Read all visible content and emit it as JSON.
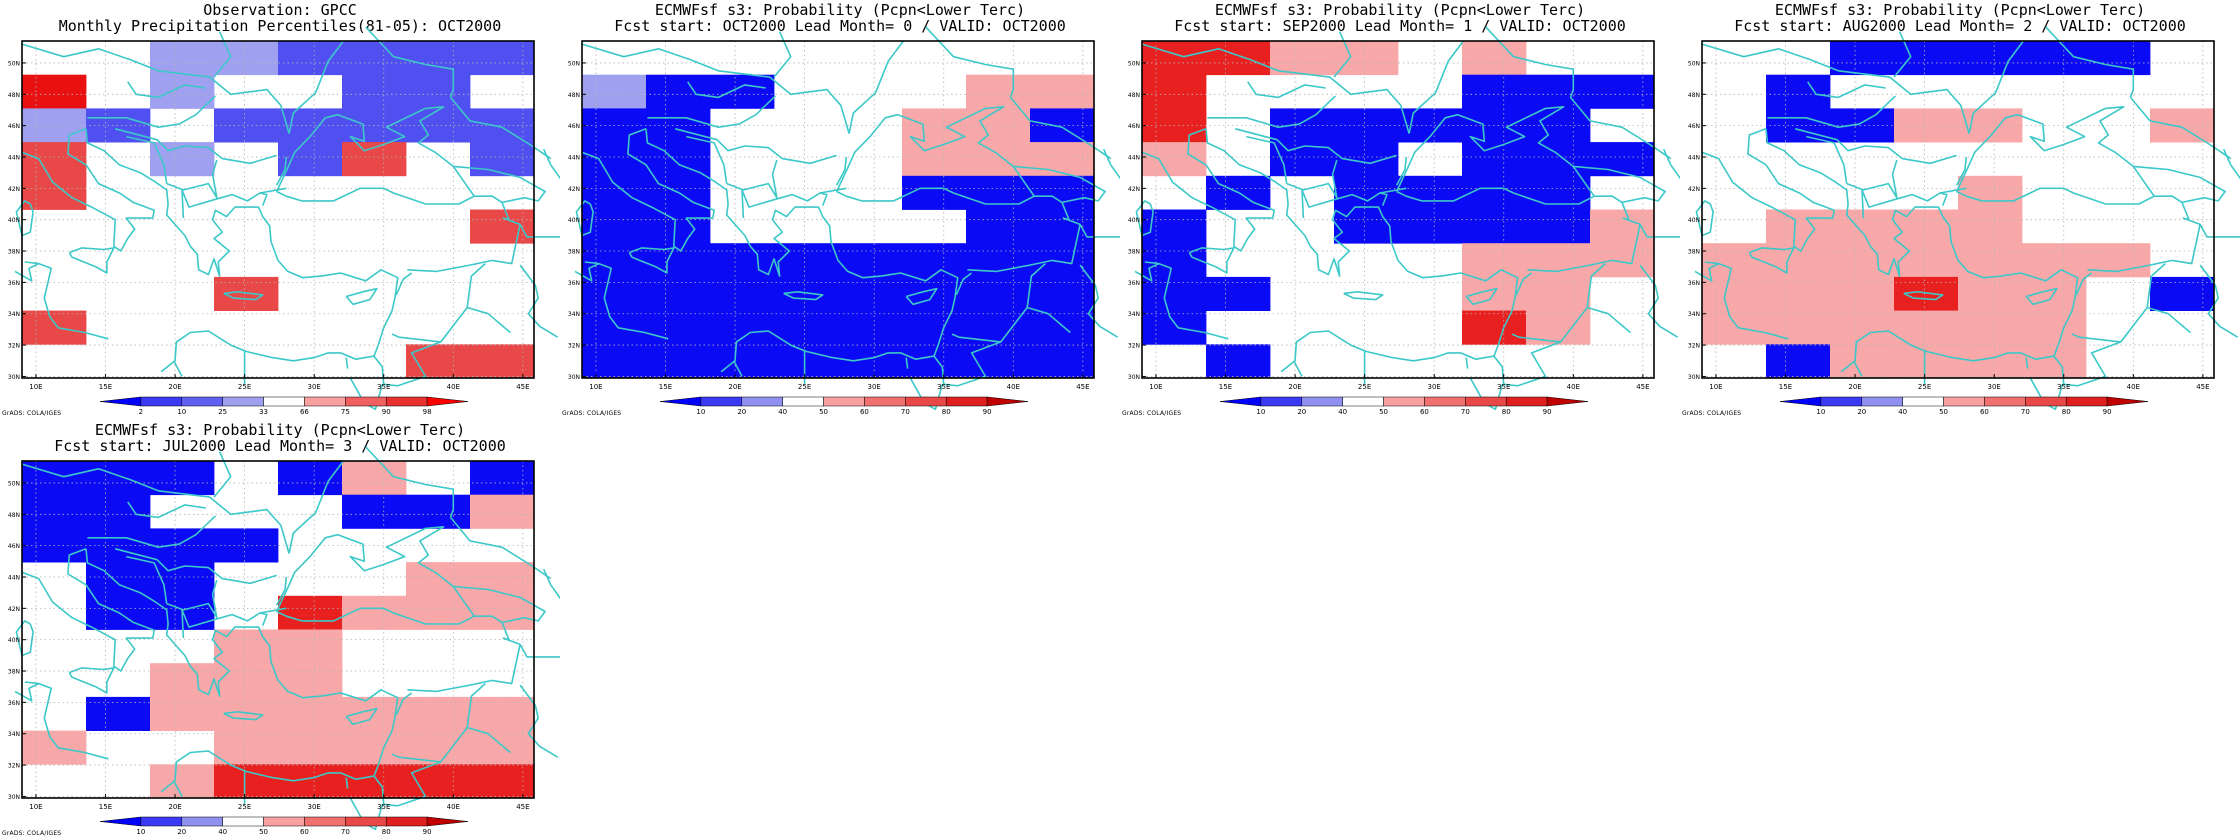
{
  "credit": "GrADS: COLA/IGES",
  "x_ticks": [
    "10E",
    "15E",
    "20E",
    "25E",
    "30E",
    "35E",
    "40E",
    "45E"
  ],
  "y_ticks": [
    "50N",
    "48N",
    "46N",
    "44N",
    "42N",
    "40N",
    "38N",
    "36N",
    "34N",
    "32N",
    "30N"
  ],
  "colors": {
    "coast": "#3cc8c8",
    "grid": "#b4b4b4"
  },
  "panels": [
    {
      "id": "obs",
      "title1": "Observation: GPCC",
      "title2": "Monthly Precipitation Percentiles(81-05): OCT2000",
      "colorbar": {
        "labels": [
          "2",
          "10",
          "25",
          "33",
          "66",
          "75",
          "90",
          "98"
        ],
        "colors": [
          "#0000ff",
          "#3a3af5",
          "#6060f0",
          "#a0a0f0",
          "#ffffff",
          "#f8a0a0",
          "#f06060",
          "#e83030",
          "#ff0000"
        ]
      },
      "grid": [
        "00UUPPpP",
        "R0U00PP0",
        "UP0PPPPP",
        "L0U0PL0P",
        "L0000000",
        "0000000L",
        "00000000",
        "000L0000",
        "L0000000",
        "000000LL"
      ]
    },
    {
      "id": "lead0",
      "title1": "ECMWFsf s3: Probability (Pcpn<Lower Terc)",
      "title2": "Fcst start: OCT2000  Lead Month= 0 / VALID: OCT2000",
      "colorbar": {
        "labels": [
          "10",
          "20",
          "40",
          "50",
          "60",
          "70",
          "80",
          "90"
        ],
        "colors": [
          "#0000ff",
          "#3a3af5",
          "#9090f0",
          "#ffffff",
          "#f8a0a0",
          "#f07070",
          "#e84848",
          "#e02020",
          "#c00000"
        ]
      },
      "grid": [
        "00000000",
        "UPP000LL",
        "PP000LLP",
        "PP000LLL",
        "PP000PPP",
        "PP0000PP",
        "PPPPPPPP",
        "PPPPPPPP",
        "PPPPPPPP",
        "PPPPPPPP"
      ]
    },
    {
      "id": "lead1",
      "title1": "ECMWFsf s3: Probability (Pcpn<Lower Terc)",
      "title2": "Fcst start: SEP2000  Lead Month= 1 / VALID: OCT2000",
      "colorbar": {
        "labels": [
          "10",
          "20",
          "40",
          "50",
          "60",
          "70",
          "80",
          "90"
        ],
        "colors": [
          "#0000ff",
          "#3a3af5",
          "#9090f0",
          "#ffffff",
          "#f8a0a0",
          "#f07070",
          "#e84848",
          "#e02020",
          "#c00000"
        ]
      },
      "grid": [
        "RRLL0L00",
        "R0000PPP",
        "R0PPPPP0",
        "L0PP0PPP",
        "0P0PPPP0",
        "P00PPPPL",
        "P0000LLL",
        "PP000LL0",
        "P0000RL0",
        "0P000000"
      ]
    },
    {
      "id": "lead2",
      "title1": "ECMWFsf s3: Probability (Pcpn<Lower Terc)",
      "title2": "Fcst start: AUG2000  Lead Month= 2 / VALID: OCT2000",
      "colorbar": {
        "labels": [
          "10",
          "20",
          "40",
          "50",
          "60",
          "70",
          "80",
          "90"
        ],
        "colors": [
          "#0000ff",
          "#3a3af5",
          "#9090f0",
          "#ffffff",
          "#f8a0a0",
          "#f07070",
          "#e84848",
          "#e02020",
          "#c00000"
        ]
      },
      "grid": [
        "00PPPPP0",
        "0P000000",
        "0PPLL00L",
        "00000000",
        "0000L000",
        "0LLLL000",
        "LLLLLLL0",
        "LLLRLL0P",
        "LLLLLL00",
        "0PLLLL00"
      ]
    },
    {
      "id": "lead3",
      "title1": "ECMWFsf s3: Probability (Pcpn<Lower Terc)",
      "title2": "Fcst start: JUL2000  Lead Month= 3 / VALID: OCT2000",
      "colorbar": {
        "labels": [
          "10",
          "20",
          "40",
          "50",
          "60",
          "70",
          "80",
          "90"
        ],
        "colors": [
          "#0000ff",
          "#3a3af5",
          "#9090f0",
          "#ffffff",
          "#f8a0a0",
          "#f07070",
          "#e84848",
          "#e02020",
          "#c00000"
        ]
      },
      "grid": [
        "PPP0PL0P",
        "PP000PPL",
        "PPPP0000",
        "0PP000LL",
        "0PP0RLLL",
        "000LL000",
        "00LLL000",
        "0PLLLLLL",
        "L00LLLLL",
        "00LRRRRR"
      ]
    }
  ]
}
